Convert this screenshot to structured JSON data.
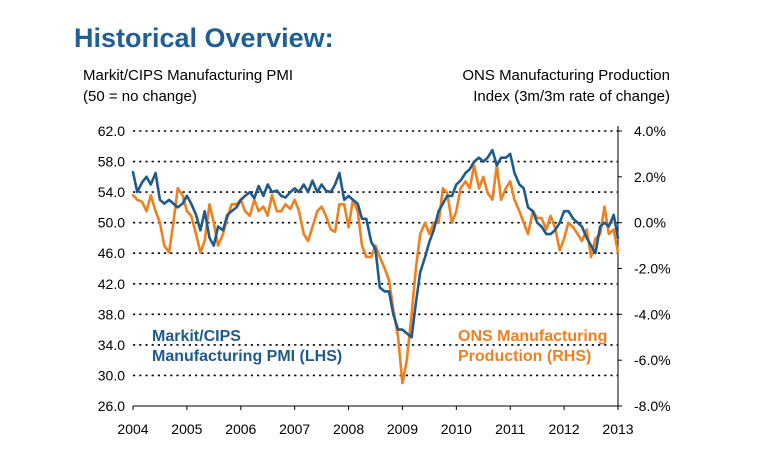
{
  "title": "Historical Overview:",
  "left_axis_caption": [
    "Markit/CIPS Manufacturing PMI",
    "(50 = no change)"
  ],
  "right_axis_caption": [
    "ONS Manufacturing Production",
    "Index (3m/3m rate of change)"
  ],
  "pmi_label": [
    "Markit/CIPS",
    "Manufacturing PMI (LHS)"
  ],
  "ons_label": [
    "ONS Manufacturing",
    "Production (RHS)"
  ],
  "colors": {
    "title": "#1f5f95",
    "pmi": "#1f5a8c",
    "ons": "#f07f1d",
    "grid": "#000000"
  },
  "chart_data": {
    "type": "line",
    "title": "Historical Overview:",
    "x_ticks": [
      "2004",
      "2005",
      "2006",
      "2007",
      "2008",
      "2009",
      "2010",
      "2011",
      "2012",
      "2013"
    ],
    "xlim": [
      2004.0,
      2013.0
    ],
    "y_left": {
      "ticks": [
        "62.0",
        "58.0",
        "54.0",
        "50.0",
        "46.0",
        "42.0",
        "38.0",
        "34.0",
        "30.0",
        "26.0"
      ],
      "range": [
        26,
        62
      ]
    },
    "y_right": {
      "ticks": [
        "4.0%",
        "2.0%",
        "0.0%",
        "-2.0%",
        "-4.0%",
        "-6.0%",
        "-8.0%"
      ],
      "range": [
        -8,
        4
      ],
      "unit": "%"
    },
    "grid": "dotted horizontal",
    "series": [
      {
        "name": "Markit/CIPS Manufacturing PMI (LHS)",
        "axis": "left",
        "x": [
          2004.0,
          2004.08,
          2004.17,
          2004.25,
          2004.33,
          2004.42,
          2004.5,
          2004.58,
          2004.67,
          2004.75,
          2004.83,
          2004.92,
          2005.0,
          2005.08,
          2005.17,
          2005.25,
          2005.33,
          2005.42,
          2005.5,
          2005.58,
          2005.67,
          2005.75,
          2005.83,
          2005.92,
          2006.0,
          2006.08,
          2006.17,
          2006.25,
          2006.33,
          2006.42,
          2006.5,
          2006.58,
          2006.67,
          2006.75,
          2006.83,
          2006.92,
          2007.0,
          2007.08,
          2007.17,
          2007.25,
          2007.33,
          2007.42,
          2007.5,
          2007.58,
          2007.67,
          2007.75,
          2007.83,
          2007.92,
          2008.0,
          2008.08,
          2008.17,
          2008.25,
          2008.33,
          2008.42,
          2008.5,
          2008.58,
          2008.67,
          2008.75,
          2008.83,
          2008.92,
          2009.0,
          2009.08,
          2009.17,
          2009.25,
          2009.33,
          2009.42,
          2009.5,
          2009.58,
          2009.67,
          2009.75,
          2009.83,
          2009.92,
          2010.0,
          2010.08,
          2010.17,
          2010.25,
          2010.33,
          2010.42,
          2010.5,
          2010.58,
          2010.67,
          2010.75,
          2010.83,
          2010.92,
          2011.0,
          2011.08,
          2011.17,
          2011.25,
          2011.33,
          2011.42,
          2011.5,
          2011.58,
          2011.67,
          2011.75,
          2011.83,
          2011.92,
          2012.0,
          2012.08,
          2012.17,
          2012.25,
          2012.33,
          2012.42,
          2012.5,
          2012.58,
          2012.67,
          2012.75,
          2012.83,
          2012.92,
          2013.0
        ],
        "values": [
          56.6,
          54.0,
          55.3,
          56.0,
          55.0,
          56.5,
          53.0,
          52.5,
          53.0,
          52.5,
          52.0,
          52.5,
          53.5,
          52.5,
          51.0,
          49.0,
          51.5,
          48.0,
          47.0,
          49.5,
          49.0,
          51.0,
          51.5,
          52.0,
          53.0,
          53.5,
          54.0,
          53.2,
          54.8,
          53.5,
          55.0,
          54.0,
          54.2,
          53.5,
          53.3,
          54.0,
          54.5,
          54.0,
          55.0,
          54.0,
          55.5,
          54.0,
          55.0,
          54.2,
          54.0,
          55.0,
          56.5,
          53.0,
          53.5,
          53.0,
          52.5,
          50.5,
          50.5,
          47.5,
          46.5,
          41.5,
          41.0,
          41.0,
          38.0,
          36.0,
          36.0,
          35.5,
          35.0,
          39.5,
          43.5,
          45.5,
          47.5,
          49.0,
          51.5,
          52.5,
          53.5,
          53.5,
          55.0,
          55.5,
          56.5,
          57.0,
          58.0,
          58.5,
          58.0,
          58.5,
          59.5,
          57.5,
          58.5,
          58.5,
          59.0,
          56.5,
          55.0,
          54.5,
          52.0,
          51.5,
          50.0,
          49.5,
          48.5,
          48.5,
          49.0,
          50.0,
          51.5,
          51.5,
          50.5,
          50.0,
          49.5,
          48.0,
          47.0,
          46.0,
          49.5,
          50.0,
          49.5,
          51.0,
          48.0
        ]
      },
      {
        "name": "ONS Manufacturing Production (RHS)",
        "axis": "right",
        "x": [
          2004.0,
          2004.08,
          2004.17,
          2004.25,
          2004.33,
          2004.42,
          2004.5,
          2004.58,
          2004.67,
          2004.75,
          2004.83,
          2004.92,
          2005.0,
          2005.08,
          2005.17,
          2005.25,
          2005.33,
          2005.42,
          2005.5,
          2005.58,
          2005.67,
          2005.75,
          2005.83,
          2005.92,
          2006.0,
          2006.08,
          2006.17,
          2006.25,
          2006.33,
          2006.42,
          2006.5,
          2006.58,
          2006.67,
          2006.75,
          2006.83,
          2006.92,
          2007.0,
          2007.08,
          2007.17,
          2007.25,
          2007.33,
          2007.42,
          2007.5,
          2007.58,
          2007.67,
          2007.75,
          2007.83,
          2007.92,
          2008.0,
          2008.08,
          2008.17,
          2008.25,
          2008.33,
          2008.42,
          2008.5,
          2008.58,
          2008.67,
          2008.75,
          2008.83,
          2008.92,
          2009.0,
          2009.08,
          2009.17,
          2009.25,
          2009.33,
          2009.42,
          2009.5,
          2009.58,
          2009.67,
          2009.75,
          2009.83,
          2009.92,
          2010.0,
          2010.08,
          2010.17,
          2010.25,
          2010.33,
          2010.42,
          2010.5,
          2010.58,
          2010.67,
          2010.75,
          2010.83,
          2010.92,
          2011.0,
          2011.08,
          2011.17,
          2011.25,
          2011.33,
          2011.42,
          2011.5,
          2011.58,
          2011.67,
          2011.75,
          2011.83,
          2011.92,
          2012.0,
          2012.08,
          2012.17,
          2012.25,
          2012.33,
          2012.42,
          2012.5,
          2012.58,
          2012.67,
          2012.75,
          2012.83,
          2012.92,
          2013.0
        ],
        "values": [
          1.2,
          1.0,
          0.9,
          0.5,
          1.2,
          0.5,
          0.0,
          -1.0,
          -1.3,
          0.0,
          1.5,
          1.2,
          0.5,
          0.3,
          -0.5,
          -1.3,
          -0.8,
          0.8,
          0.0,
          -1.0,
          -0.5,
          0.2,
          0.8,
          0.8,
          1.0,
          0.5,
          0.3,
          1.0,
          0.5,
          0.7,
          0.3,
          1.2,
          0.5,
          0.5,
          0.8,
          0.6,
          1.0,
          0.5,
          -0.5,
          -0.8,
          -0.2,
          0.5,
          0.7,
          0.3,
          -0.3,
          -0.4,
          0.8,
          0.8,
          -0.2,
          1.0,
          0.5,
          -1.0,
          -1.5,
          -1.5,
          -1.0,
          -1.5,
          -2.0,
          -2.5,
          -3.8,
          -5.0,
          -7.0,
          -6.0,
          -4.0,
          -2.0,
          -0.5,
          0.0,
          -0.5,
          0.0,
          0.0,
          1.5,
          1.3,
          0.0,
          0.5,
          1.5,
          1.8,
          1.5,
          2.5,
          1.5,
          2.0,
          1.3,
          1.0,
          2.5,
          1.0,
          1.5,
          1.8,
          1.0,
          0.5,
          0.0,
          -0.5,
          0.5,
          0.2,
          0.2,
          -0.3,
          0.3,
          -0.2,
          -1.2,
          -0.7,
          0.0,
          -0.2,
          -0.5,
          -0.8,
          -0.3,
          -1.5,
          -0.7,
          -0.5,
          0.7,
          -0.5,
          -0.3,
          -1.3
        ]
      }
    ]
  }
}
